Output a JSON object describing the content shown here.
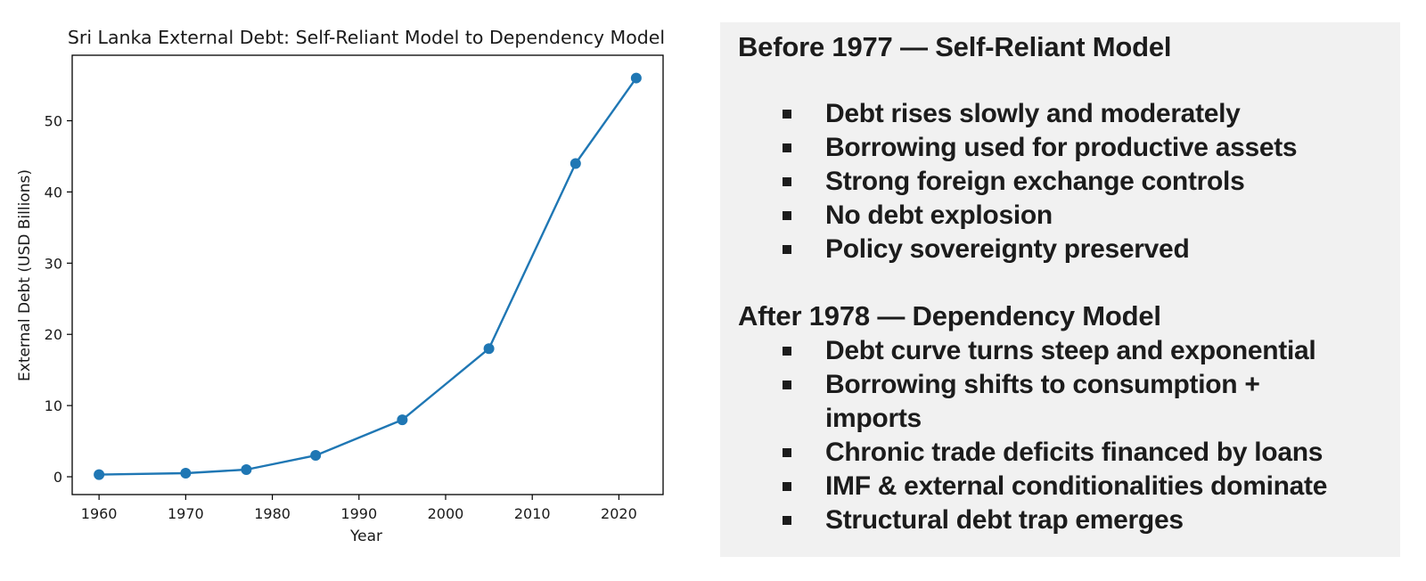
{
  "chart_data": {
    "type": "line",
    "title": "Sri Lanka External Debt: Self-Reliant Model to Dependency Model",
    "xlabel": "Year",
    "ylabel": "External Debt (USD Billions)",
    "x": [
      1960,
      1970,
      1977,
      1985,
      1995,
      2005,
      2015,
      2022
    ],
    "series": [
      {
        "values": [
          0.3,
          0.5,
          1.0,
          3.0,
          8.0,
          18.0,
          44.0,
          56.0
        ]
      }
    ],
    "xticks": [
      "1960",
      "1970",
      "1980",
      "1990",
      "2000",
      "2010",
      "2020"
    ],
    "yticks": [
      "0",
      "10",
      "20",
      "30",
      "40",
      "50"
    ],
    "xlim": [
      1956.9,
      2025.1
    ],
    "ylim": [
      -2.5,
      59.2
    ],
    "grid": false,
    "marker": "circle",
    "line_color": "#1f77b4"
  },
  "notes": {
    "before": {
      "heading": "Before 1977 — Self-Reliant Model",
      "bullets": [
        "Debt rises slowly and moderately",
        "Borrowing used for productive assets",
        "Strong foreign exchange controls",
        "No debt explosion",
        "Policy sovereignty preserved"
      ]
    },
    "after": {
      "heading": "After 1978 — Dependency Model",
      "bullets": [
        "Debt curve turns steep and exponential",
        "Borrowing shifts to consumption + imports",
        "Chronic trade deficits financed by loans",
        "IMF & external conditionalities dominate",
        "Structural debt trap emerges"
      ]
    },
    "panel_color": "#f1f1f1"
  }
}
